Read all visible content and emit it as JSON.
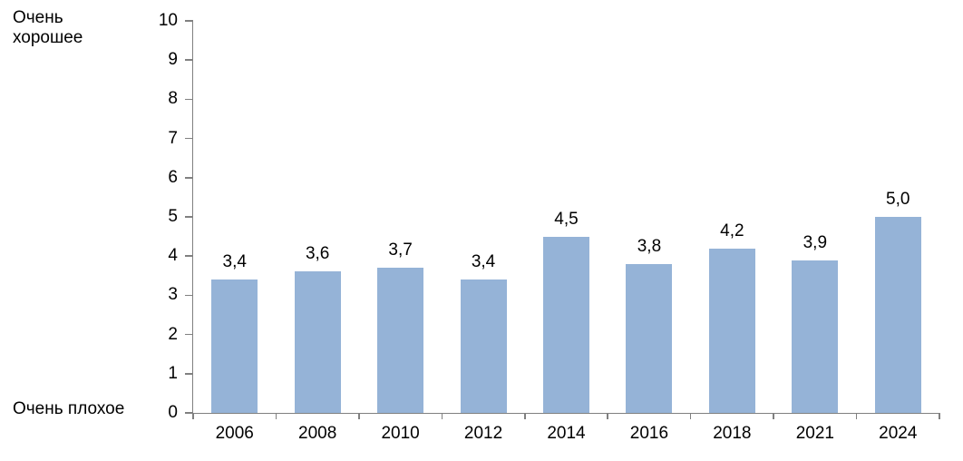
{
  "chart_data": {
    "type": "bar",
    "categories": [
      "2006",
      "2008",
      "2010",
      "2012",
      "2014",
      "2016",
      "2018",
      "2021",
      "2024"
    ],
    "values": [
      3.4,
      3.6,
      3.7,
      3.4,
      4.5,
      3.8,
      4.2,
      3.9,
      5.0
    ],
    "value_labels": [
      "3,4",
      "3,6",
      "3,7",
      "3,4",
      "4,5",
      "3,8",
      "4,2",
      "3,9",
      "5,0"
    ],
    "title": "",
    "xlabel": "",
    "ylabel": "",
    "y_axis_top_label": "Очень хорошее",
    "y_axis_bottom_label": "Очень плохое",
    "ylim": [
      0,
      10
    ],
    "y_ticks": [
      "0",
      "1",
      "2",
      "3",
      "4",
      "5",
      "6",
      "7",
      "8",
      "9",
      "10"
    ],
    "grid": false,
    "legend": false,
    "bar_color": "#95B3D7",
    "axis_color": "#808080",
    "text_color": "#000000"
  }
}
